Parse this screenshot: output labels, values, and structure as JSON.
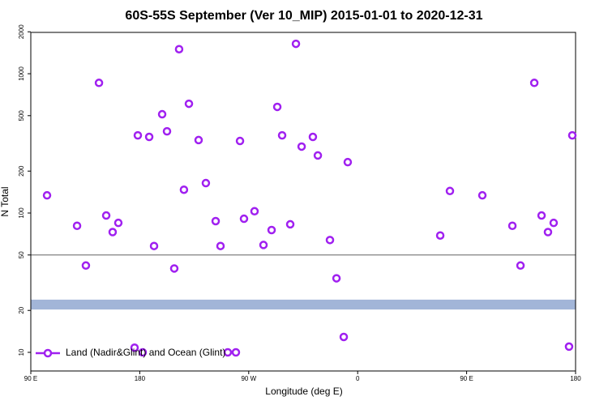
{
  "chart_data": {
    "type": "scatter",
    "title": "60S-55S September (Ver 10_MIP)   2015-01-01 to 2020-12-31",
    "x_label": "Longitude (deg E)",
    "y_label": "N Total",
    "y_scale": "log",
    "xlim": [
      90,
      540
    ],
    "ylim": [
      7.35,
      1980
    ],
    "xticks": [
      {
        "value": 90,
        "label": "90 E"
      },
      {
        "value": 180,
        "label": "180"
      },
      {
        "value": 270,
        "label": "90 W"
      },
      {
        "value": 360,
        "label": "0"
      },
      {
        "value": 450,
        "label": "90 E"
      },
      {
        "value": 540,
        "label": "180"
      }
    ],
    "yticks": [
      10,
      20,
      50,
      100,
      200,
      500,
      1000,
      2000
    ],
    "reference_lines": [
      {
        "value": 50,
        "color": "#808080"
      }
    ],
    "bands": [
      {
        "range": [
          20.3,
          23.9
        ],
        "color": "#a2b5d8"
      }
    ],
    "legend": "bottom-left",
    "series": [
      {
        "name": "Land (Nadir&Glint) and Ocean (Glint)",
        "color": "#a020f0",
        "x": [
          103.4,
          128.2,
          135.5,
          146.3,
          152.3,
          157.6,
          162.3,
          175.7,
          178.4,
          182.4,
          187.8,
          191.8,
          198.5,
          202.5,
          208.5,
          212.5,
          216.5,
          220.6,
          228.6,
          234.6,
          242.7,
          246.7,
          252.7,
          259.4,
          262.8,
          266.1,
          274.8,
          282.2,
          288.9,
          293.6,
          297.6,
          304.3,
          309.0,
          313.7,
          323.0,
          327.1,
          337.1,
          342.5,
          348.5,
          351.8,
          428.2,
          436.2,
          463.0,
          487.8,
          494.5,
          505.9,
          511.9,
          517.2,
          521.9,
          534.6,
          537.3
        ],
        "values": [
          134,
          81,
          42,
          860,
          96,
          73,
          85,
          10.8,
          361,
          10,
          352,
          58,
          512,
          386,
          40,
          1500,
          147,
          609,
          334,
          164,
          87.5,
          58,
          10,
          10,
          329,
          91,
          103,
          59,
          75.5,
          578,
          361,
          83,
          1640,
          300,
          352,
          259,
          64,
          34,
          12.9,
          232,
          69,
          144,
          134,
          81,
          42,
          860,
          96,
          73,
          85,
          11,
          361
        ]
      }
    ]
  }
}
